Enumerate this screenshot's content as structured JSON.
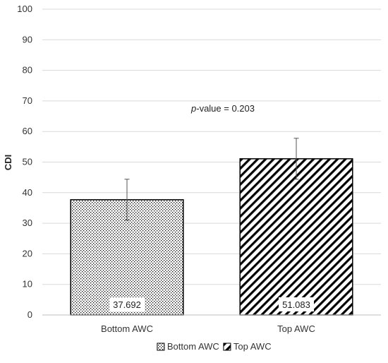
{
  "chart_data": {
    "type": "bar",
    "title": "",
    "xlabel": "",
    "ylabel": "CDI",
    "ylim": [
      0,
      100
    ],
    "yticks": [
      0,
      10,
      20,
      30,
      40,
      50,
      60,
      70,
      80,
      90,
      100
    ],
    "grid": "horizontal",
    "categories": [
      "Bottom AWC",
      "Top AWC"
    ],
    "values": [
      37.692,
      51.083
    ],
    "value_labels": [
      "37.692",
      "51.083"
    ],
    "error": [
      6.7,
      6.7
    ],
    "fills": [
      "dotted",
      "diagonal-stripes"
    ],
    "legend": {
      "placement": "bottom",
      "items": [
        "Bottom AWC",
        "Top AWC"
      ]
    },
    "annotation": {
      "prefix": "p",
      "suffix": "-value = 0.203"
    },
    "colors": {
      "grid": "#d9d9d9",
      "bar_outline": "#000000",
      "pattern": "#000000",
      "axis_text": "#333333"
    }
  }
}
